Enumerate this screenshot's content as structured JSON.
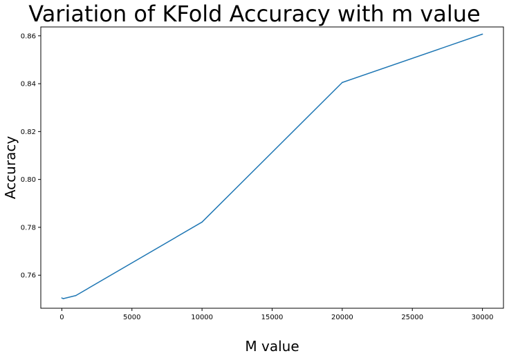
{
  "chart_data": {
    "type": "line",
    "title": "Variation of KFold Accuracy with m value",
    "xlabel": "M value",
    "ylabel": "Accuracy",
    "x": [
      0,
      100,
      1000,
      10000,
      20000,
      30000
    ],
    "series": [
      {
        "values": [
          0.7505,
          0.7502,
          0.7515,
          0.7822,
          0.8405,
          0.8607
        ],
        "color": "#1f77b4"
      }
    ],
    "xlim": [
      -1500,
      31500
    ],
    "ylim": [
      0.7462,
      0.8637
    ],
    "xticks": [
      0,
      5000,
      10000,
      15000,
      20000,
      25000,
      30000
    ],
    "xtick_labels": [
      "0",
      "5000",
      "10000",
      "15000",
      "20000",
      "25000",
      "30000"
    ],
    "yticks": [
      0.76,
      0.78,
      0.8,
      0.82,
      0.84,
      0.86
    ],
    "ytick_labels": [
      "0.76",
      "0.78",
      "0.80",
      "0.82",
      "0.84",
      "0.86"
    ],
    "grid": false,
    "legend": false
  }
}
